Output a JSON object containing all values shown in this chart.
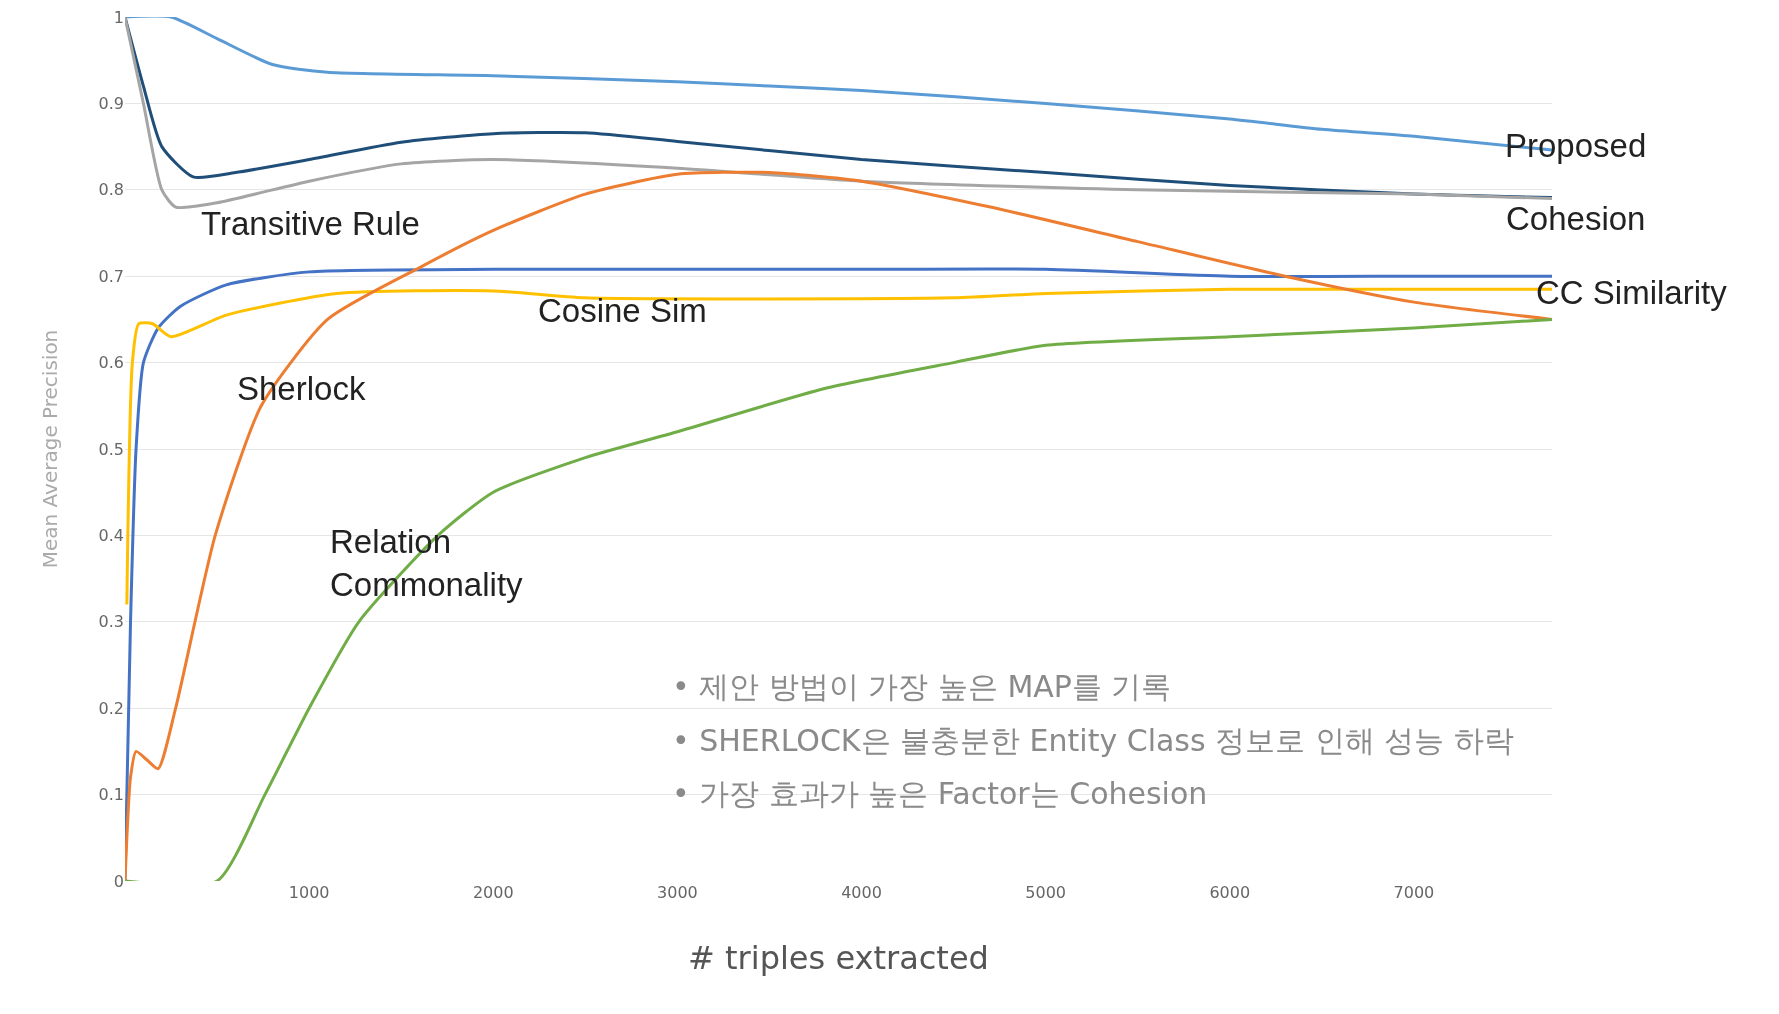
{
  "chart_data": {
    "type": "line",
    "xlabel": "# triples extracted",
    "ylabel": "Mean Average Precision",
    "xlim": [
      0,
      7750
    ],
    "xticks": [
      1000,
      2000,
      3000,
      4000,
      5000,
      6000,
      7000
    ],
    "ylim": [
      0,
      1
    ],
    "yticks": [
      0,
      0.1,
      0.2,
      0.3,
      0.4,
      0.5,
      0.6,
      0.7,
      0.8,
      0.9,
      1
    ],
    "grid": "y",
    "legend": false,
    "marker": "none",
    "line_style": "solid",
    "series": [
      {
        "name": "Proposed",
        "color": "#5b9bd5",
        "x": [
          0,
          250,
          500,
          800,
          1100,
          2000,
          3000,
          3500,
          4000,
          5000,
          6000,
          6500,
          7000,
          7750
        ],
        "values": [
          1,
          1,
          0.975,
          0.945,
          0.936,
          0.932,
          0.925,
          0.92,
          0.915,
          0.9,
          0.882,
          0.87,
          0.862,
          0.846
        ]
      },
      {
        "name": "Cohesion",
        "color": "#1f4e79",
        "x": [
          0,
          100,
          200,
          370,
          600,
          1000,
          1500,
          2000,
          2500,
          3000,
          4000,
          5000,
          6000,
          7000,
          7750
        ],
        "values": [
          1,
          0.92,
          0.85,
          0.815,
          0.82,
          0.835,
          0.855,
          0.865,
          0.866,
          0.856,
          0.835,
          0.82,
          0.805,
          0.795,
          0.791
        ]
      },
      {
        "name": "Transitive Rule",
        "color": "#a5a5a5",
        "x": [
          0,
          100,
          200,
          275,
          500,
          1000,
          1500,
          2000,
          3000,
          4000,
          5500,
          7000,
          7750
        ],
        "values": [
          1,
          0.9,
          0.8,
          0.78,
          0.785,
          0.81,
          0.83,
          0.835,
          0.825,
          0.81,
          0.8,
          0.795,
          0.79
        ]
      },
      {
        "name": "CC Similarity",
        "color": "#4472c4",
        "x": [
          0,
          30,
          60,
          100,
          180,
          300,
          550,
          1000,
          2000,
          3000,
          4000,
          5000,
          6000,
          7000,
          7750
        ],
        "values": [
          0,
          0.3,
          0.5,
          0.6,
          0.64,
          0.665,
          0.69,
          0.705,
          0.708,
          0.708,
          0.708,
          0.708,
          0.7,
          0.7,
          0.7
        ]
      },
      {
        "name": "Cosine Sim",
        "color": "#ffc000",
        "x": [
          10,
          40,
          75,
          150,
          250,
          550,
          1150,
          2000,
          2500,
          4500,
          5000,
          6000,
          7750
        ],
        "values": [
          0.32,
          0.6,
          0.645,
          0.645,
          0.63,
          0.655,
          0.68,
          0.683,
          0.675,
          0.675,
          0.68,
          0.685,
          0.685
        ]
      },
      {
        "name": "Sherlock",
        "color": "#ed7d31",
        "x": [
          0,
          30,
          60,
          120,
          180,
          275,
          490,
          740,
          1100,
          1600,
          2000,
          2500,
          3000,
          3500,
          4000,
          4700,
          5500,
          6300,
          7000,
          7750
        ],
        "values": [
          0,
          0.12,
          0.15,
          0.14,
          0.13,
          0.2,
          0.4,
          0.55,
          0.65,
          0.71,
          0.753,
          0.795,
          0.818,
          0.82,
          0.81,
          0.78,
          0.74,
          0.7,
          0.67,
          0.65
        ]
      },
      {
        "name": "Relation Commonality",
        "color": "#70ad47",
        "x": [
          0,
          500,
          760,
          1000,
          1270,
          1700,
          2000,
          2500,
          3000,
          3800,
          4500,
          5000,
          6000,
          7000,
          7750
        ],
        "values": [
          0,
          0,
          0.1,
          0.2,
          0.3,
          0.4,
          0.45,
          0.49,
          0.52,
          0.57,
          0.6,
          0.62,
          0.63,
          0.64,
          0.65
        ]
      }
    ],
    "annotations": [
      "• 제안 방법이 가장 높은 MAP를 기록",
      "• SHERLOCK은 불충분한 Entity Class 정보로 인해 성능 하락",
      "• 가장 효과가 높은 Factor는 Cohesion"
    ]
  }
}
